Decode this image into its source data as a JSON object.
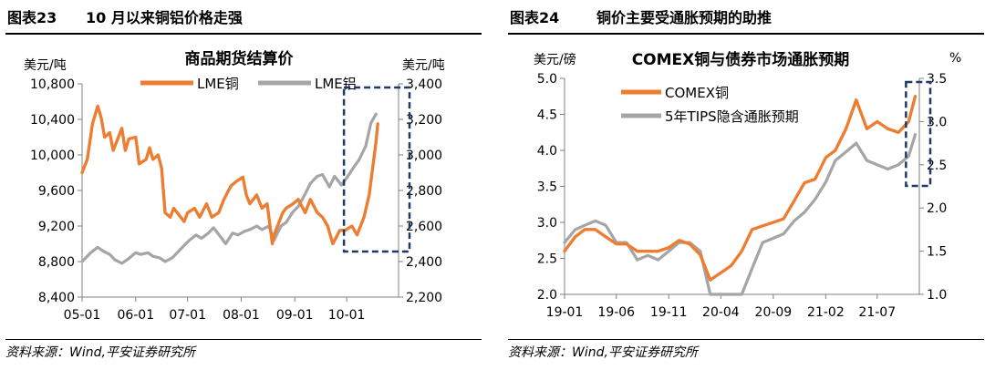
{
  "panels": [
    {
      "header_number": "图表23",
      "header_title": "10 月以来铜铝价格走强",
      "source": "资料来源：Wind,平安证券研究所"
    },
    {
      "header_number": "图表24",
      "header_title": "铜价主要受通胀预期的助推",
      "source": "资料来源：Wind,平安证券研究所"
    }
  ],
  "chart_data": [
    {
      "type": "line",
      "title": "商品期货结算价",
      "y_unit": "美元/吨",
      "y2_unit": "美元/吨",
      "ylim": [
        8400,
        10800
      ],
      "yticks": [
        "10,800",
        "10,400",
        "10,000",
        "9,600",
        "9,200",
        "8,800",
        "8,400"
      ],
      "y2lim": [
        2200,
        3400
      ],
      "y2ticks": [
        "3,400",
        "3,200",
        "3,000",
        "2,800",
        "2,600",
        "2,400",
        "2,200"
      ],
      "x_range": [
        "2021-05-01",
        "2021-10-31"
      ],
      "x_ticks": [
        {
          "label": "05-01",
          "date": "2021-05-01"
        },
        {
          "label": "06-01",
          "date": "2021-06-01"
        },
        {
          "label": "07-01",
          "date": "2021-07-01"
        },
        {
          "label": "08-01",
          "date": "2021-08-01"
        },
        {
          "label": "09-01",
          "date": "2021-09-01"
        },
        {
          "label": "10-01",
          "date": "2021-10-01"
        }
      ],
      "highlight_range": [
        "2021-10-01",
        "2021-10-31"
      ],
      "legend_position": "top",
      "series": [
        {
          "name": "LME铜",
          "axis": "left",
          "color": "#ED7D31",
          "points": [
            [
              "2021-05-01",
              9800
            ],
            [
              "2021-05-04",
              9950
            ],
            [
              "2021-05-07",
              10350
            ],
            [
              "2021-05-10",
              10550
            ],
            [
              "2021-05-12",
              10420
            ],
            [
              "2021-05-14",
              10200
            ],
            [
              "2021-05-17",
              10250
            ],
            [
              "2021-05-19",
              10050
            ],
            [
              "2021-05-21",
              10150
            ],
            [
              "2021-05-24",
              10300
            ],
            [
              "2021-05-26",
              10050
            ],
            [
              "2021-05-28",
              10180
            ],
            [
              "2021-06-01",
              10200
            ],
            [
              "2021-06-03",
              9900
            ],
            [
              "2021-06-07",
              9950
            ],
            [
              "2021-06-09",
              10080
            ],
            [
              "2021-06-11",
              9950
            ],
            [
              "2021-06-14",
              10000
            ],
            [
              "2021-06-16",
              9850
            ],
            [
              "2021-06-18",
              9350
            ],
            [
              "2021-06-21",
              9300
            ],
            [
              "2021-06-23",
              9400
            ],
            [
              "2021-06-25",
              9350
            ],
            [
              "2021-06-29",
              9250
            ],
            [
              "2021-07-01",
              9350
            ],
            [
              "2021-07-05",
              9400
            ],
            [
              "2021-07-08",
              9300
            ],
            [
              "2021-07-12",
              9450
            ],
            [
              "2021-07-15",
              9300
            ],
            [
              "2021-07-19",
              9350
            ],
            [
              "2021-07-22",
              9500
            ],
            [
              "2021-07-26",
              9650
            ],
            [
              "2021-07-29",
              9700
            ],
            [
              "2021-08-02",
              9750
            ],
            [
              "2021-08-04",
              9550
            ],
            [
              "2021-08-06",
              9450
            ],
            [
              "2021-08-10",
              9550
            ],
            [
              "2021-08-13",
              9400
            ],
            [
              "2021-08-16",
              9450
            ],
            [
              "2021-08-19",
              9000
            ],
            [
              "2021-08-20",
              9100
            ],
            [
              "2021-08-23",
              9250
            ],
            [
              "2021-08-25",
              9350
            ],
            [
              "2021-08-27",
              9400
            ],
            [
              "2021-08-31",
              9450
            ],
            [
              "2021-09-03",
              9500
            ],
            [
              "2021-09-07",
              9350
            ],
            [
              "2021-09-10",
              9500
            ],
            [
              "2021-09-14",
              9350
            ],
            [
              "2021-09-17",
              9300
            ],
            [
              "2021-09-20",
              9200
            ],
            [
              "2021-09-23",
              9000
            ],
            [
              "2021-09-27",
              9150
            ],
            [
              "2021-09-30",
              9150
            ],
            [
              "2021-10-04",
              9200
            ],
            [
              "2021-10-07",
              9100
            ],
            [
              "2021-10-11",
              9300
            ],
            [
              "2021-10-14",
              9550
            ],
            [
              "2021-10-18",
              10150
            ],
            [
              "2021-10-19",
              10350
            ]
          ]
        },
        {
          "name": "LME铝",
          "axis": "right",
          "color": "#A5A5A5",
          "points": [
            [
              "2021-05-01",
              2400
            ],
            [
              "2021-05-03",
              2420
            ],
            [
              "2021-05-06",
              2450
            ],
            [
              "2021-05-10",
              2480
            ],
            [
              "2021-05-13",
              2460
            ],
            [
              "2021-05-17",
              2440
            ],
            [
              "2021-05-20",
              2410
            ],
            [
              "2021-05-24",
              2390
            ],
            [
              "2021-05-27",
              2410
            ],
            [
              "2021-06-01",
              2450
            ],
            [
              "2021-06-04",
              2440
            ],
            [
              "2021-06-08",
              2450
            ],
            [
              "2021-06-11",
              2430
            ],
            [
              "2021-06-15",
              2420
            ],
            [
              "2021-06-18",
              2400
            ],
            [
              "2021-06-22",
              2420
            ],
            [
              "2021-06-25",
              2450
            ],
            [
              "2021-06-29",
              2490
            ],
            [
              "2021-07-02",
              2520
            ],
            [
              "2021-07-06",
              2550
            ],
            [
              "2021-07-09",
              2530
            ],
            [
              "2021-07-13",
              2560
            ],
            [
              "2021-07-16",
              2590
            ],
            [
              "2021-07-20",
              2540
            ],
            [
              "2021-07-23",
              2500
            ],
            [
              "2021-07-27",
              2560
            ],
            [
              "2021-07-30",
              2550
            ],
            [
              "2021-08-03",
              2570
            ],
            [
              "2021-08-06",
              2580
            ],
            [
              "2021-08-10",
              2600
            ],
            [
              "2021-08-13",
              2580
            ],
            [
              "2021-08-17",
              2600
            ],
            [
              "2021-08-20",
              2520
            ],
            [
              "2021-08-24",
              2600
            ],
            [
              "2021-08-27",
              2620
            ],
            [
              "2021-08-31",
              2680
            ],
            [
              "2021-09-03",
              2710
            ],
            [
              "2021-09-07",
              2780
            ],
            [
              "2021-09-10",
              2840
            ],
            [
              "2021-09-14",
              2880
            ],
            [
              "2021-09-17",
              2890
            ],
            [
              "2021-09-21",
              2820
            ],
            [
              "2021-09-24",
              2880
            ],
            [
              "2021-09-28",
              2830
            ],
            [
              "2021-10-01",
              2870
            ],
            [
              "2021-10-05",
              2930
            ],
            [
              "2021-10-08",
              2970
            ],
            [
              "2021-10-12",
              3050
            ],
            [
              "2021-10-15",
              3180
            ],
            [
              "2021-10-18",
              3230
            ]
          ]
        }
      ]
    },
    {
      "type": "line",
      "title": "COMEX铜与债券市场通胀预期",
      "y_unit": "美元/磅",
      "y2_unit": "%",
      "ylim": [
        2.0,
        5.0
      ],
      "yticks": [
        "5.0",
        "4.5",
        "4.0",
        "3.5",
        "3.0",
        "2.5",
        "2.0"
      ],
      "y2lim": [
        1.0,
        3.5
      ],
      "y2ticks": [
        "3.5",
        "3.0",
        "2.5",
        "2.0",
        "1.5",
        "1.0"
      ],
      "x_range": [
        "2019-01-01",
        "2021-11-01"
      ],
      "x_ticks": [
        {
          "label": "19-01",
          "date": "2019-01-01"
        },
        {
          "label": "19-06",
          "date": "2019-06-01"
        },
        {
          "label": "19-11",
          "date": "2019-11-01"
        },
        {
          "label": "20-04",
          "date": "2020-04-01"
        },
        {
          "label": "20-09",
          "date": "2020-09-01"
        },
        {
          "label": "21-02",
          "date": "2021-02-01"
        },
        {
          "label": "21-07",
          "date": "2021-07-01"
        }
      ],
      "highlight_range": [
        "2021-10-01",
        "2021-11-01"
      ],
      "legend_position": "top-left",
      "series": [
        {
          "name": "COMEX铜",
          "axis": "left",
          "color": "#ED7D31",
          "points": [
            [
              "2019-01-01",
              2.6
            ],
            [
              "2019-02-01",
              2.8
            ],
            [
              "2019-03-01",
              2.9
            ],
            [
              "2019-04-01",
              2.9
            ],
            [
              "2019-05-01",
              2.8
            ],
            [
              "2019-06-01",
              2.7
            ],
            [
              "2019-07-01",
              2.7
            ],
            [
              "2019-08-01",
              2.6
            ],
            [
              "2019-09-01",
              2.6
            ],
            [
              "2019-10-01",
              2.6
            ],
            [
              "2019-11-01",
              2.65
            ],
            [
              "2019-12-01",
              2.75
            ],
            [
              "2020-01-01",
              2.7
            ],
            [
              "2020-02-01",
              2.55
            ],
            [
              "2020-03-01",
              2.2
            ],
            [
              "2020-04-01",
              2.3
            ],
            [
              "2020-05-01",
              2.4
            ],
            [
              "2020-06-01",
              2.6
            ],
            [
              "2020-07-01",
              2.9
            ],
            [
              "2020-08-01",
              2.95
            ],
            [
              "2020-09-01",
              3.0
            ],
            [
              "2020-10-01",
              3.05
            ],
            [
              "2020-11-01",
              3.3
            ],
            [
              "2020-12-01",
              3.55
            ],
            [
              "2021-01-01",
              3.6
            ],
            [
              "2021-02-01",
              3.9
            ],
            [
              "2021-03-01",
              4.0
            ],
            [
              "2021-04-01",
              4.3
            ],
            [
              "2021-05-01",
              4.7
            ],
            [
              "2021-06-01",
              4.3
            ],
            [
              "2021-07-01",
              4.4
            ],
            [
              "2021-08-01",
              4.3
            ],
            [
              "2021-09-01",
              4.25
            ],
            [
              "2021-10-01",
              4.4
            ],
            [
              "2021-10-20",
              4.75
            ]
          ]
        },
        {
          "name": "5年TIPS隐含通胀预期",
          "axis": "right",
          "color": "#A5A5A5",
          "points": [
            [
              "2019-01-01",
              1.6
            ],
            [
              "2019-02-01",
              1.75
            ],
            [
              "2019-03-01",
              1.8
            ],
            [
              "2019-04-01",
              1.85
            ],
            [
              "2019-05-01",
              1.8
            ],
            [
              "2019-06-01",
              1.6
            ],
            [
              "2019-07-01",
              1.6
            ],
            [
              "2019-08-01",
              1.4
            ],
            [
              "2019-09-01",
              1.45
            ],
            [
              "2019-10-01",
              1.4
            ],
            [
              "2019-11-01",
              1.5
            ],
            [
              "2019-12-01",
              1.6
            ],
            [
              "2020-01-01",
              1.6
            ],
            [
              "2020-02-01",
              1.5
            ],
            [
              "2020-03-01",
              0.5
            ],
            [
              "2020-04-01",
              0.6
            ],
            [
              "2020-05-01",
              0.8
            ],
            [
              "2020-06-01",
              1.0
            ],
            [
              "2020-07-01",
              1.3
            ],
            [
              "2020-08-01",
              1.6
            ],
            [
              "2020-09-01",
              1.65
            ],
            [
              "2020-10-01",
              1.7
            ],
            [
              "2020-11-01",
              1.85
            ],
            [
              "2020-12-01",
              1.95
            ],
            [
              "2021-01-01",
              2.1
            ],
            [
              "2021-02-01",
              2.3
            ],
            [
              "2021-03-01",
              2.55
            ],
            [
              "2021-04-01",
              2.65
            ],
            [
              "2021-05-01",
              2.75
            ],
            [
              "2021-06-01",
              2.55
            ],
            [
              "2021-07-01",
              2.5
            ],
            [
              "2021-08-01",
              2.45
            ],
            [
              "2021-09-01",
              2.5
            ],
            [
              "2021-10-01",
              2.6
            ],
            [
              "2021-10-20",
              2.85
            ]
          ]
        }
      ]
    }
  ]
}
